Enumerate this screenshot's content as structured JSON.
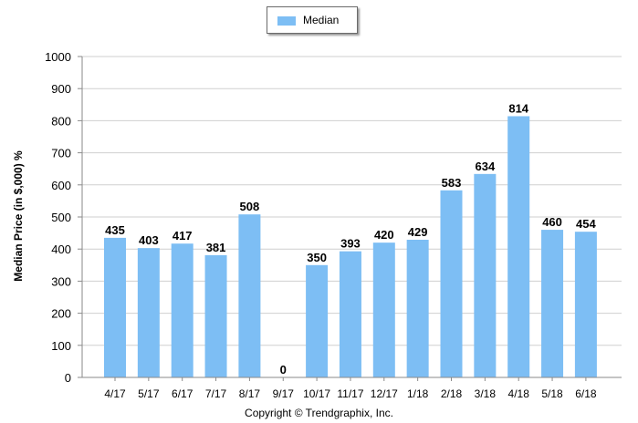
{
  "chart_data": {
    "type": "bar",
    "categories": [
      "4/17",
      "5/17",
      "6/17",
      "7/17",
      "8/17",
      "9/17",
      "10/17",
      "11/17",
      "12/17",
      "1/18",
      "2/18",
      "3/18",
      "4/18",
      "5/18",
      "6/18"
    ],
    "series": [
      {
        "name": "Median",
        "values": [
          435,
          403,
          417,
          381,
          508,
          0,
          350,
          393,
          420,
          429,
          583,
          634,
          814,
          460,
          454
        ]
      }
    ],
    "ylabel": "Median Price (in $,000) %",
    "ylim": [
      0,
      1000
    ],
    "yticks": [
      0,
      100,
      200,
      300,
      400,
      500,
      600,
      700,
      800,
      900,
      1000
    ],
    "grid": true,
    "legend_position": "top-center",
    "colors": {
      "bar": "#7dbef4",
      "grid": "#cfcfcf",
      "axis": "#8a8a8a"
    }
  },
  "footer": {
    "copyright": "Copyright © Trendgraphix, Inc."
  }
}
